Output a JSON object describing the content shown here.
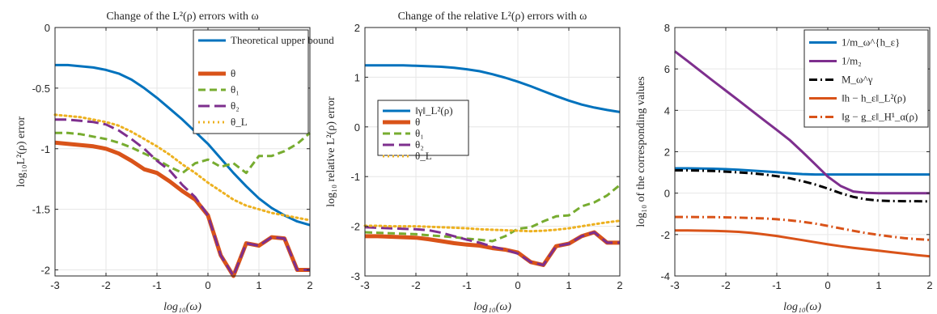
{
  "chart_data": [
    {
      "type": "line",
      "title": "Change of the L²(ρ) errors with ω",
      "xlabel": "log₁₀(ω)",
      "ylabel": "log₁₀L²(ρ) error",
      "xlim": [
        -3,
        2
      ],
      "ylim": [
        -2.05,
        0
      ],
      "xticks": [
        -3,
        -2,
        -1,
        0,
        1,
        2
      ],
      "yticks": [
        0,
        -0.5,
        -1,
        -1.5,
        -2
      ],
      "xtick_labels": [
        "-3",
        "-2",
        "-1",
        "0",
        "1",
        "2"
      ],
      "ytick_labels": [
        "0",
        "-0.5",
        "-1",
        "-1.5",
        "-2"
      ],
      "grid": true,
      "legend": "top-right",
      "x": [
        -3,
        -2.75,
        -2.5,
        -2.25,
        -2,
        -1.75,
        -1.5,
        -1.25,
        -1,
        -0.75,
        -0.5,
        -0.25,
        0,
        0.25,
        0.5,
        0.75,
        1,
        1.25,
        1.5,
        1.75,
        2
      ],
      "series": [
        {
          "name": "Theoretical upper bound",
          "color": "#0072BD",
          "dash": "solid",
          "width": 3,
          "values": [
            -0.31,
            -0.31,
            -0.32,
            -0.33,
            -0.35,
            -0.38,
            -0.43,
            -0.5,
            -0.58,
            -0.67,
            -0.76,
            -0.86,
            -0.96,
            -1.08,
            -1.2,
            -1.31,
            -1.41,
            -1.49,
            -1.55,
            -1.6,
            -1.63
          ]
        },
        {
          "name": "θ",
          "color": "#D95319",
          "dash": "solid",
          "width": 5,
          "values": [
            -0.95,
            -0.96,
            -0.97,
            -0.98,
            -1.0,
            -1.04,
            -1.1,
            -1.17,
            -1.2,
            -1.27,
            -1.35,
            -1.42,
            -1.55,
            -1.88,
            -2.05,
            -1.78,
            -1.8,
            -1.73,
            -1.74,
            -2.0,
            -2.0
          ]
        },
        {
          "name": "θ₁",
          "color": "#77AC30",
          "dash": "dash",
          "width": 3,
          "values": [
            -0.87,
            -0.87,
            -0.88,
            -0.9,
            -0.92,
            -0.95,
            -0.99,
            -1.04,
            -1.09,
            -1.15,
            -1.2,
            -1.12,
            -1.09,
            -1.15,
            -1.12,
            -1.2,
            -1.06,
            -1.06,
            -1.02,
            -0.96,
            -0.87
          ]
        },
        {
          "name": "θ₂",
          "color": "#7E2F8E",
          "dash": "longdash",
          "width": 3,
          "values": [
            -0.76,
            -0.76,
            -0.77,
            -0.78,
            -0.8,
            -0.85,
            -0.92,
            -1.0,
            -1.1,
            -1.18,
            -1.3,
            -1.4,
            -1.55,
            -1.88,
            -2.05,
            -1.78,
            -1.8,
            -1.73,
            -1.74,
            -2.0,
            -2.0
          ]
        },
        {
          "name": "θ_L",
          "color": "#EDB120",
          "dash": "dot",
          "width": 3,
          "values": [
            -0.72,
            -0.73,
            -0.74,
            -0.76,
            -0.78,
            -0.81,
            -0.86,
            -0.92,
            -0.98,
            -1.05,
            -1.13,
            -1.2,
            -1.28,
            -1.35,
            -1.42,
            -1.47,
            -1.5,
            -1.53,
            -1.55,
            -1.57,
            -1.59
          ]
        }
      ]
    },
    {
      "type": "line",
      "title": "Change of the relative L²(ρ) errors with ω",
      "xlabel": "log₁₀(ω)",
      "ylabel": "log₁₀ relative L²(ρ) error",
      "xlim": [
        -3,
        2
      ],
      "ylim": [
        -3,
        2
      ],
      "xticks": [
        -3,
        -2,
        -1,
        0,
        1,
        2
      ],
      "yticks": [
        2,
        1,
        0,
        -1,
        -2,
        -3
      ],
      "xtick_labels": [
        "-3",
        "-2",
        "-1",
        "0",
        "1",
        "2"
      ],
      "ytick_labels": [
        "2",
        "1",
        "0",
        "-1",
        "-2",
        "-3"
      ],
      "grid": true,
      "legend": "top-left",
      "x": [
        -3,
        -2.75,
        -2.5,
        -2.25,
        -2,
        -1.75,
        -1.5,
        -1.25,
        -1,
        -0.75,
        -0.5,
        -0.25,
        0,
        0.25,
        0.5,
        0.75,
        1,
        1.25,
        1.5,
        1.75,
        2
      ],
      "series": [
        {
          "name": "‖γ‖_L²(ρ)",
          "color": "#0072BD",
          "dash": "solid",
          "width": 3,
          "values": [
            1.24,
            1.24,
            1.24,
            1.24,
            1.23,
            1.22,
            1.21,
            1.19,
            1.16,
            1.12,
            1.06,
            0.99,
            0.91,
            0.82,
            0.72,
            0.62,
            0.53,
            0.45,
            0.39,
            0.34,
            0.3
          ]
        },
        {
          "name": "θ",
          "color": "#D95319",
          "dash": "solid",
          "width": 5,
          "values": [
            -2.2,
            -2.2,
            -2.21,
            -2.22,
            -2.23,
            -2.26,
            -2.3,
            -2.34,
            -2.37,
            -2.39,
            -2.44,
            -2.47,
            -2.53,
            -2.72,
            -2.78,
            -2.4,
            -2.35,
            -2.2,
            -2.12,
            -2.33,
            -2.33
          ]
        },
        {
          "name": "θ₁",
          "color": "#77AC30",
          "dash": "dash",
          "width": 3,
          "values": [
            -2.12,
            -2.13,
            -2.14,
            -2.15,
            -2.16,
            -2.18,
            -2.2,
            -2.22,
            -2.25,
            -2.27,
            -2.3,
            -2.2,
            -2.05,
            -2.02,
            -1.9,
            -1.8,
            -1.78,
            -1.6,
            -1.52,
            -1.38,
            -1.17
          ]
        },
        {
          "name": "θ₂",
          "color": "#7E2F8E",
          "dash": "longdash",
          "width": 3,
          "values": [
            -2.02,
            -2.03,
            -2.04,
            -2.05,
            -2.06,
            -2.08,
            -2.13,
            -2.2,
            -2.27,
            -2.33,
            -2.41,
            -2.47,
            -2.55,
            -2.72,
            -2.78,
            -2.4,
            -2.35,
            -2.2,
            -2.12,
            -2.33,
            -2.33
          ]
        },
        {
          "name": "θ_L",
          "color": "#EDB120",
          "dash": "dot",
          "width": 3,
          "values": [
            -1.99,
            -1.99,
            -2.0,
            -2.0,
            -2.0,
            -2.01,
            -2.02,
            -2.03,
            -2.04,
            -2.06,
            -2.07,
            -2.08,
            -2.09,
            -2.1,
            -2.09,
            -2.07,
            -2.04,
            -2.0,
            -1.96,
            -1.92,
            -1.89
          ]
        }
      ]
    },
    {
      "type": "line",
      "title": "",
      "xlabel": "log₁₀(ω)",
      "ylabel": "log₁₀ of the corresponding values",
      "xlim": [
        -3,
        2
      ],
      "ylim": [
        -4,
        8
      ],
      "xticks": [
        -3,
        -2,
        -1,
        0,
        1,
        2
      ],
      "yticks": [
        8,
        6,
        4,
        2,
        0,
        -2,
        -4
      ],
      "xtick_labels": [
        "-3",
        "-2",
        "-1",
        "0",
        "1",
        "2"
      ],
      "ytick_labels": [
        "8",
        "6",
        "4",
        "2",
        "0",
        "-2",
        "-4"
      ],
      "grid": true,
      "legend": "top-right",
      "x": [
        -3,
        -2.75,
        -2.5,
        -2.25,
        -2,
        -1.75,
        -1.5,
        -1.25,
        -1,
        -0.75,
        -0.5,
        -0.25,
        0,
        0.25,
        0.5,
        0.75,
        1,
        1.25,
        1.5,
        1.75,
        2
      ],
      "series": [
        {
          "name": "1/m_ω^{h_ε}",
          "color": "#0072BD",
          "dash": "solid",
          "width": 3,
          "values": [
            1.2,
            1.2,
            1.19,
            1.18,
            1.16,
            1.13,
            1.09,
            1.05,
            1.01,
            0.96,
            0.92,
            0.9,
            0.9,
            0.9,
            0.9,
            0.9,
            0.9,
            0.9,
            0.9,
            0.9,
            0.9
          ]
        },
        {
          "name": "1/m₂",
          "color": "#7E2F8E",
          "dash": "solid",
          "width": 3,
          "values": [
            6.85,
            6.38,
            5.9,
            5.42,
            4.95,
            4.48,
            4.0,
            3.52,
            3.05,
            2.57,
            2.0,
            1.4,
            0.8,
            0.35,
            0.08,
            0.02,
            0.0,
            0.0,
            0.0,
            0.0,
            0.0
          ]
        },
        {
          "name": "M_ω^γ",
          "color": "#000000",
          "dash": "dashdot",
          "width": 3,
          "values": [
            1.1,
            1.1,
            1.09,
            1.07,
            1.04,
            1.0,
            0.96,
            0.9,
            0.82,
            0.72,
            0.58,
            0.42,
            0.22,
            0.0,
            -0.18,
            -0.3,
            -0.36,
            -0.38,
            -0.39,
            -0.39,
            -0.4
          ]
        },
        {
          "name": "‖h − h_ε‖_L²(ρ)",
          "color": "#D95319",
          "dash": "solid",
          "width": 3,
          "values": [
            -1.8,
            -1.8,
            -1.81,
            -1.82,
            -1.84,
            -1.87,
            -1.92,
            -1.99,
            -2.07,
            -2.17,
            -2.27,
            -2.37,
            -2.47,
            -2.56,
            -2.64,
            -2.71,
            -2.78,
            -2.85,
            -2.92,
            -2.99,
            -3.05
          ]
        },
        {
          "name": "‖g − g_ε‖_H¹_α(ρ)",
          "color": "#D95319",
          "dash": "dashdot",
          "width": 3,
          "values": [
            -1.15,
            -1.15,
            -1.16,
            -1.16,
            -1.17,
            -1.18,
            -1.2,
            -1.22,
            -1.26,
            -1.31,
            -1.38,
            -1.47,
            -1.58,
            -1.7,
            -1.82,
            -1.93,
            -2.02,
            -2.1,
            -2.17,
            -2.22,
            -2.26
          ]
        }
      ]
    }
  ]
}
